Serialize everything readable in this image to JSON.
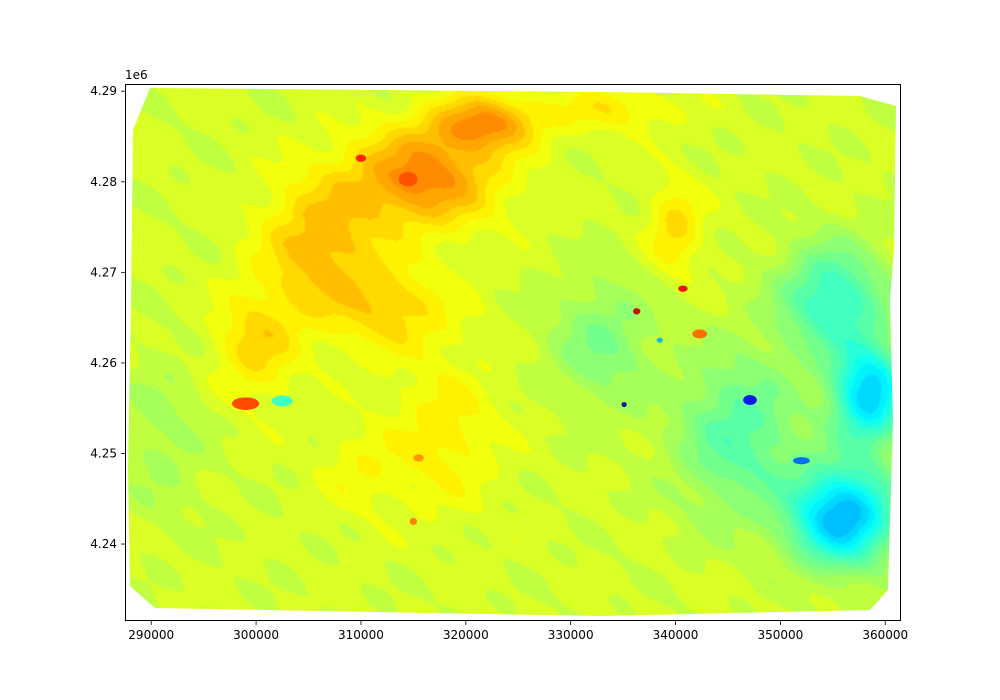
{
  "chart_data": {
    "type": "heatmap",
    "title": "",
    "xlabel": "",
    "ylabel": "",
    "y_offset_label": "1e6",
    "xlim": [
      287500,
      361500
    ],
    "ylim": [
      4231500,
      4290800
    ],
    "x_ticks": [
      {
        "value": 290000,
        "label": "290000"
      },
      {
        "value": 300000,
        "label": "300000"
      },
      {
        "value": 310000,
        "label": "310000"
      },
      {
        "value": 320000,
        "label": "320000"
      },
      {
        "value": 330000,
        "label": "330000"
      },
      {
        "value": 340000,
        "label": "340000"
      },
      {
        "value": 350000,
        "label": "350000"
      },
      {
        "value": 360000,
        "label": "360000"
      }
    ],
    "y_ticks": [
      {
        "value": 4240000,
        "label": "4.24"
      },
      {
        "value": 4250000,
        "label": "4.25"
      },
      {
        "value": 4260000,
        "label": "4.26"
      },
      {
        "value": 4270000,
        "label": "4.27"
      },
      {
        "value": 4280000,
        "label": "4.28"
      },
      {
        "value": 4290000,
        "label": "4.29"
      }
    ],
    "grid": false,
    "legend": "none",
    "colormap": "jet",
    "value_range": [
      0,
      1
    ],
    "background_level": 0.58,
    "features": [
      {
        "kind": "high",
        "x": 316000,
        "y": 4280500,
        "value": 0.74,
        "sx": 7000,
        "sy": 5500
      },
      {
        "kind": "high",
        "x": 322000,
        "y": 4286500,
        "value": 0.72,
        "sx": 5000,
        "sy": 3000
      },
      {
        "kind": "high",
        "x": 306000,
        "y": 4273000,
        "value": 0.69,
        "sx": 5500,
        "sy": 7500
      },
      {
        "kind": "high",
        "x": 300000,
        "y": 4262000,
        "value": 0.66,
        "sx": 4000,
        "sy": 6000
      },
      {
        "kind": "high",
        "x": 313000,
        "y": 4266000,
        "value": 0.66,
        "sx": 6000,
        "sy": 5000
      },
      {
        "kind": "high",
        "x": 318000,
        "y": 4252000,
        "value": 0.64,
        "sx": 5000,
        "sy": 8000
      },
      {
        "kind": "high",
        "x": 340000,
        "y": 4275000,
        "value": 0.66,
        "sx": 2500,
        "sy": 5000
      },
      {
        "kind": "high",
        "x": 334000,
        "y": 4288000,
        "value": 0.64,
        "sx": 6000,
        "sy": 2500
      },
      {
        "kind": "high",
        "x": 310000,
        "y": 4248000,
        "value": 0.62,
        "sx": 4000,
        "sy": 5000
      },
      {
        "kind": "low",
        "x": 356000,
        "y": 4243000,
        "value": 0.3,
        "sx": 5000,
        "sy": 5500
      },
      {
        "kind": "low",
        "x": 358500,
        "y": 4256500,
        "value": 0.33,
        "sx": 3500,
        "sy": 5500
      },
      {
        "kind": "low",
        "x": 355000,
        "y": 4267000,
        "value": 0.42,
        "sx": 5000,
        "sy": 6000
      },
      {
        "kind": "low",
        "x": 346000,
        "y": 4252000,
        "value": 0.46,
        "sx": 6000,
        "sy": 9000
      },
      {
        "kind": "low",
        "x": 333000,
        "y": 4262000,
        "value": 0.5,
        "sx": 5000,
        "sy": 7000
      },
      {
        "kind": "low",
        "x": 291000,
        "y": 4252000,
        "value": 0.54,
        "sx": 4000,
        "sy": 9000
      },
      {
        "kind": "spot",
        "x": 310000,
        "y": 4282600,
        "value": 0.86,
        "sx": 500,
        "sy": 400
      },
      {
        "kind": "spot",
        "x": 314500,
        "y": 4280300,
        "value": 0.8,
        "sx": 900,
        "sy": 800
      },
      {
        "kind": "spot",
        "x": 299000,
        "y": 4255500,
        "value": 0.82,
        "sx": 1300,
        "sy": 700
      },
      {
        "kind": "spot",
        "x": 302500,
        "y": 4255800,
        "value": 0.42,
        "sx": 1000,
        "sy": 600
      },
      {
        "kind": "spot",
        "x": 336300,
        "y": 4265700,
        "value": 0.94,
        "sx": 350,
        "sy": 350
      },
      {
        "kind": "spot",
        "x": 340700,
        "y": 4268200,
        "value": 0.9,
        "sx": 450,
        "sy": 350
      },
      {
        "kind": "spot",
        "x": 342300,
        "y": 4263200,
        "value": 0.78,
        "sx": 700,
        "sy": 500
      },
      {
        "kind": "spot",
        "x": 347100,
        "y": 4255900,
        "value": 0.12,
        "sx": 650,
        "sy": 550
      },
      {
        "kind": "spot",
        "x": 335100,
        "y": 4255400,
        "value": 0.02,
        "sx": 250,
        "sy": 250
      },
      {
        "kind": "spot",
        "x": 352000,
        "y": 4249200,
        "value": 0.22,
        "sx": 800,
        "sy": 400
      },
      {
        "kind": "spot",
        "x": 315000,
        "y": 4242500,
        "value": 0.76,
        "sx": 350,
        "sy": 400
      },
      {
        "kind": "spot",
        "x": 315500,
        "y": 4249500,
        "value": 0.74,
        "sx": 500,
        "sy": 400
      },
      {
        "kind": "spot",
        "x": 338500,
        "y": 4262500,
        "value": 0.3,
        "sx": 300,
        "sy": 200
      }
    ]
  }
}
